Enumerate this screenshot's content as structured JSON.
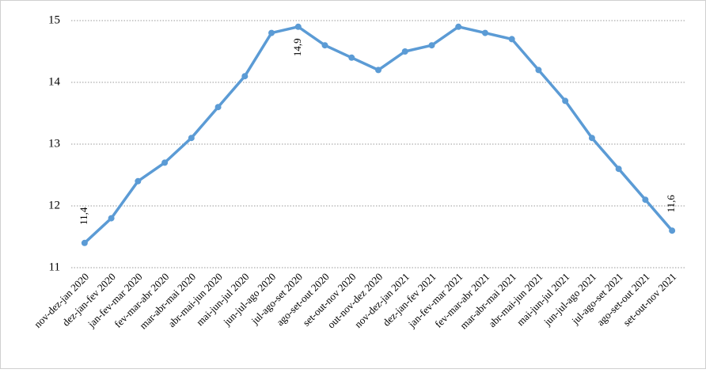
{
  "chart_data": {
    "type": "line",
    "categories": [
      "nov-dez-jan 2020",
      "dez-jan-fev 2020",
      "jan-fev-mar 2020",
      "fev-mar-abr 2020",
      "mar-abr-mai 2020",
      "abr-mai-jun 2020",
      "mai-jun-jul 2020",
      "jun-jul-ago 2020",
      "jul-ago-set 2020",
      "ago-set-out 2020",
      "set-out-nov 2020",
      "out-nov-dez 2020",
      "nov-dez-jan 2021",
      "dez-jan-fev 2021",
      "jan-fev-mar 2021",
      "fev-mar-abr 2021",
      "mar-abr-mai 2021",
      "abr-mai-jun 2021",
      "mai-jun-jul 2021",
      "jun-jul-ago 2021",
      "jul-ago-set 2021",
      "ago-set-out 2021",
      "set-out-nov 2021"
    ],
    "values": [
      11.4,
      11.8,
      12.4,
      12.7,
      13.1,
      13.6,
      14.1,
      14.8,
      14.9,
      14.6,
      14.4,
      14.2,
      14.5,
      14.6,
      14.9,
      14.8,
      14.7,
      14.2,
      13.7,
      13.1,
      12.6,
      12.1,
      11.6
    ],
    "value_labels": [
      "11,4",
      null,
      null,
      null,
      null,
      null,
      null,
      null,
      "14,9",
      null,
      null,
      null,
      null,
      null,
      null,
      null,
      null,
      null,
      null,
      null,
      null,
      null,
      "11,6"
    ],
    "color": "#5b9bd5",
    "ylim": [
      11,
      15
    ],
    "yticks": [
      11,
      12,
      13,
      14,
      15
    ],
    "grid": true
  }
}
